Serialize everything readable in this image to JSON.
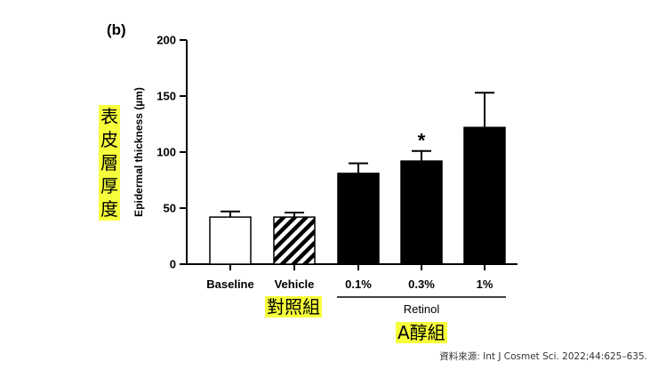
{
  "panel_label": "(b)",
  "annotations": {
    "y_axis_chinese": "表皮層厚度",
    "control_group": "對照組",
    "retinol_group": "A醇組",
    "source": "資料來源: Int J Cosmet Sci. 2022;44:625–635."
  },
  "chart_data": {
    "type": "bar",
    "categories": [
      "Baseline",
      "Vehicle",
      "0.1%",
      "0.3%",
      "1%"
    ],
    "values": [
      42,
      42,
      81,
      92,
      122
    ],
    "errors": [
      5,
      4,
      9,
      9,
      31
    ],
    "fills": [
      "white",
      "hatched",
      "black",
      "black",
      "black"
    ],
    "significance": [
      "",
      "",
      "",
      "*",
      ""
    ],
    "group_bracket": {
      "label": "Retinol",
      "categories": [
        "0.1%",
        "0.3%",
        "1%"
      ]
    },
    "title": "",
    "xlabel": "",
    "ylabel": "Epidermal thickness (µm)",
    "ylim": [
      0,
      200
    ],
    "yticks": [
      0,
      50,
      100,
      150,
      200
    ],
    "grid": false
  }
}
